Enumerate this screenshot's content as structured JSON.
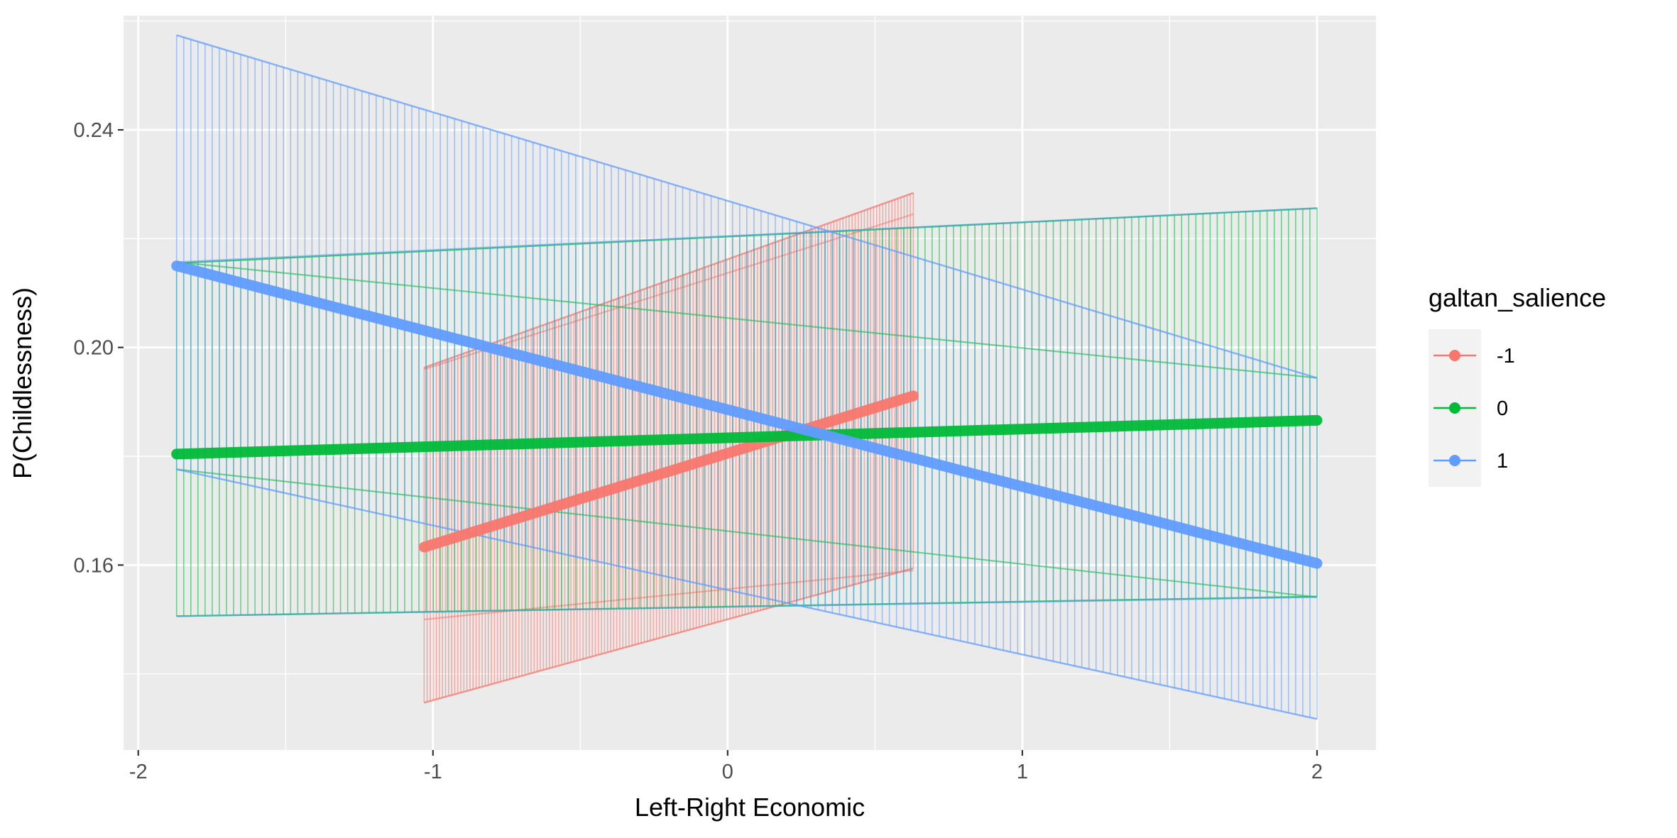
{
  "chart_data": {
    "type": "line",
    "xlabel": "Left-Right Economic",
    "ylabel": "P(Childlessness)",
    "xlim": [
      -2.05,
      2.2
    ],
    "ylim": [
      0.126,
      0.261
    ],
    "x_ticks": [
      -2,
      -1,
      0,
      1,
      2
    ],
    "x_tick_labels": [
      "-2",
      "-1",
      "0",
      "1",
      "2"
    ],
    "y_ticks": [
      0.16,
      0.2,
      0.24
    ],
    "y_tick_labels": [
      "0.16",
      "0.20",
      "0.24"
    ],
    "grid": true,
    "legend_position": "right",
    "legend_title": "galtan_salience",
    "series": [
      {
        "name": "-1",
        "color": "#F8766D",
        "x_start": -1.03,
        "x_end": 0.63,
        "estimate": [
          0.1633,
          0.1911
        ],
        "lower": [
          0.1347,
          0.1594
        ],
        "upper": [
          0.1963,
          0.2284
        ],
        "inner_upper": [
          0.196,
          0.2245
        ],
        "inner_lower": [
          0.15,
          0.159
        ]
      },
      {
        "name": "0",
        "color": "#00BA38",
        "x_start": -1.87,
        "x_end": 2.0,
        "estimate": [
          0.1804,
          0.1866
        ],
        "lower": [
          0.1506,
          0.1542
        ],
        "upper": [
          0.2155,
          0.2256
        ],
        "inner_upper": [
          0.2157,
          0.1944
        ],
        "inner_lower": [
          0.1776,
          0.1541
        ]
      },
      {
        "name": "1",
        "color": "#619CFF",
        "x_start": -1.87,
        "x_end": 2.0,
        "estimate": [
          0.215,
          0.1603
        ],
        "lower": [
          0.1776,
          0.1317
        ],
        "upper": [
          0.2574,
          0.1944
        ],
        "inner_upper": [
          0.2157,
          0.2256
        ],
        "inner_lower": [
          0.1506,
          0.1541
        ]
      }
    ]
  }
}
